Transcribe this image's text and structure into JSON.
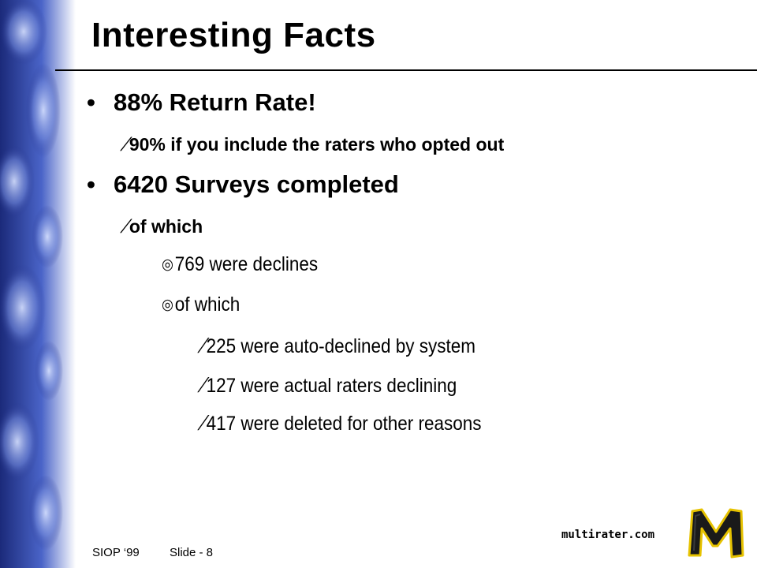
{
  "slide": {
    "title": "Interesting Facts",
    "bullets": [
      {
        "text": "88% Return Rate!",
        "subs": [
          {
            "text": "90% if you include the raters who opted out"
          }
        ]
      },
      {
        "text": "6420 Surveys completed",
        "subs": [
          {
            "text": "of which",
            "items": [
              {
                "text": "769 were declines"
              },
              {
                "text": "of which",
                "items": [
                  {
                    "text": "225 were auto-declined by system"
                  },
                  {
                    "text": "127 were actual raters declining"
                  },
                  {
                    "text": "417 were deleted for other reasons"
                  }
                ]
              }
            ]
          }
        ]
      }
    ]
  },
  "footer": {
    "conference": "SIOP ‘99",
    "slide_number": "Slide - 8",
    "brand": "multirater.com"
  },
  "colors": {
    "band_dark": "#1b2a7a",
    "band_light": "#8fa6e6",
    "logo_fill": "#1a1a1a",
    "logo_outline": "#e6c200"
  },
  "icons": {
    "bullet": "bullet-dot-icon",
    "dash": "dash-bullet-icon",
    "circle": "circle-bullet-icon",
    "logo": "m-logo-icon"
  }
}
